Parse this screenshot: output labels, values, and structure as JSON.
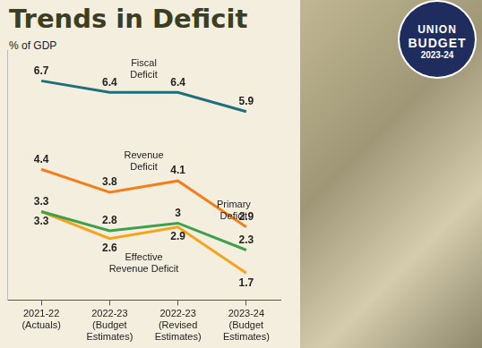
{
  "chart_data": {
    "type": "line",
    "title": "Trends in Deficit",
    "ylabel": "% of GDP",
    "categories": [
      "2021-22\n(Actuals)",
      "2022-23\n(Budget\nEstimates)",
      "2022-23\n(Revised\nEstimates)",
      "2023-24\n(Budget\nEstimates)"
    ],
    "series": [
      {
        "name": "Fiscal Deficit",
        "color": "#1f6f7a",
        "values": [
          6.7,
          6.4,
          6.4,
          5.9
        ]
      },
      {
        "name": "Revenue Deficit",
        "color": "#f0801e",
        "values": [
          4.4,
          3.8,
          4.1,
          2.9
        ]
      },
      {
        "name": "Primary Deficit",
        "color": "#3ea04a",
        "values": [
          3.3,
          2.8,
          3.0,
          2.3
        ]
      },
      {
        "name": "Effective Revenue Deficit",
        "color": "#f7a21b",
        "values": [
          3.3,
          2.6,
          2.9,
          1.7
        ]
      }
    ],
    "ylim": [
      1,
      7.5
    ],
    "grid": false,
    "legend": "none",
    "data_labels": true,
    "tick_labels": "x",
    "marker": "none",
    "line_style": "solid"
  },
  "badge": {
    "line1": "UNION",
    "line2": "BUDGET",
    "line3": "2023-24"
  }
}
